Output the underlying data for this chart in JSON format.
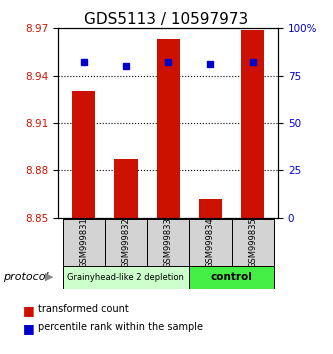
{
  "title": "GDS5113 / 10597973",
  "samples": [
    "GSM999831",
    "GSM999832",
    "GSM999833",
    "GSM999834",
    "GSM999835"
  ],
  "bar_values": [
    8.93,
    8.887,
    8.963,
    8.862,
    8.969
  ],
  "bar_bottom": 8.85,
  "percentile_values": [
    82,
    80,
    82,
    81,
    82
  ],
  "ylim_left": [
    8.85,
    8.97
  ],
  "ylim_right": [
    0,
    100
  ],
  "yticks_left": [
    8.85,
    8.88,
    8.91,
    8.94,
    8.97
  ],
  "yticks_right": [
    0,
    25,
    50,
    75,
    100
  ],
  "bar_color": "#cc1100",
  "dot_color": "#0000cc",
  "group1_label": "Grainyhead-like 2 depletion",
  "group2_label": "control",
  "group1_color": "#ccffcc",
  "group2_color": "#44ee44",
  "group1_samples": [
    0,
    1,
    2
  ],
  "group2_samples": [
    3,
    4
  ],
  "protocol_label": "protocol",
  "legend_bar_label": "transformed count",
  "legend_dot_label": "percentile rank within the sample",
  "title_fontsize": 11,
  "tick_fontsize": 7.5,
  "label_fontsize": 7
}
